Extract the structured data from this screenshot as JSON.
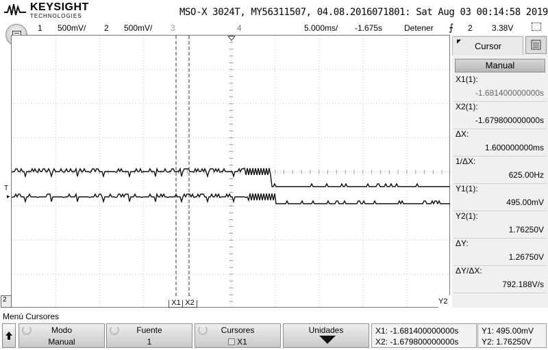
{
  "header": {
    "brand": "KEYSIGHT",
    "brand_sub": "TECHNOLOGIES",
    "instrument": "MSO-X 3024T, MY56311507, 04.08.2016071801: Sat Aug 03 00:14:58 2019"
  },
  "channels": {
    "ch1_num": "1",
    "ch1_scale": "500mV/",
    "ch2_num": "2",
    "ch2_scale": "500mV/",
    "ch3_num": "3",
    "ch4_num": "4",
    "timebase": "5.000ms/",
    "delay": "-1.675s",
    "run_state": "Detener",
    "trig_source": "2",
    "trig_level": "3.38V"
  },
  "markers": {
    "trigger": "T",
    "x1": "X1",
    "x2": "X2",
    "y2": "Y2",
    "ch2": "2"
  },
  "panel": {
    "tab": "Cursor",
    "mode_button": "Manual",
    "readings": [
      {
        "label": "X1(1):",
        "value": "-1.681400000000s"
      },
      {
        "label": "X2(1):",
        "value": "-1.679800000000s"
      },
      {
        "label": "ΔX:",
        "value": "1.600000000ms"
      },
      {
        "label": "1/ΔX:",
        "value": "625.00Hz"
      },
      {
        "label": "Y1(1):",
        "value": "495.00mV"
      },
      {
        "label": "Y2(1):",
        "value": "1.76250V"
      },
      {
        "label": "ΔY:",
        "value": "1.26750V"
      },
      {
        "label": "ΔY/ΔX:",
        "value": "792.188V/s"
      }
    ]
  },
  "menu": {
    "title": "Menú Cursores",
    "modo_label": "Modo",
    "modo_value": "Manual",
    "fuente_label": "Fuente",
    "fuente_value": "1",
    "cursores_label": "Cursores",
    "cursores_value": "X1",
    "unidades_label": "Unidades",
    "readout_x1": "X1: -1.681400000000s",
    "readout_x2": "X2: -1.679800000000s",
    "readout_y1": "Y1: 495.00mV",
    "readout_y2": "Y2: 1.76250V"
  },
  "colors": {
    "trace": "#111111",
    "grid": "#bdbdbd",
    "cursor": "#333333"
  },
  "icons": [
    "keysight-logo",
    "menu-icon",
    "trigger-edge-icon",
    "zoom-box-icon",
    "up-arrow-icon",
    "rotate-knob-icon",
    "down-arrow-icon"
  ]
}
